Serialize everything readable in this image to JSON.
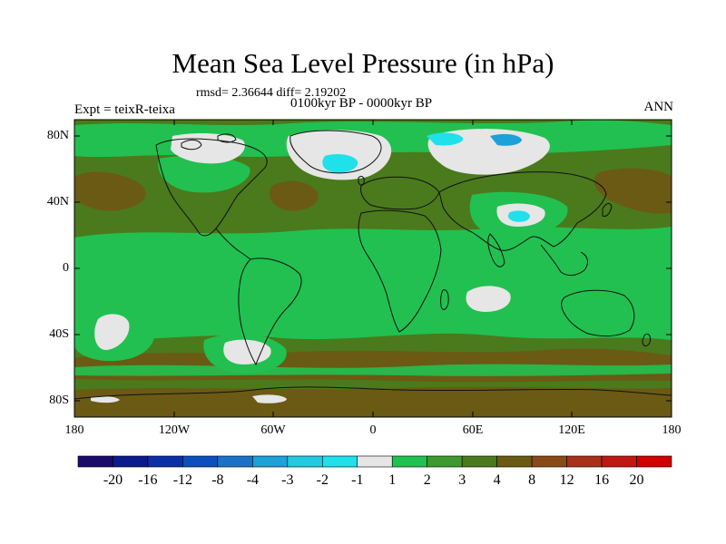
{
  "title": "Mean Sea Level Pressure (in hPa)",
  "stats_line": "rmsd= 2.36644  diff= 2.19202",
  "period_line": "0100kyr BP - 0000kyr BP",
  "experiment_label": "Expt = teixR-teixa",
  "season_label": "ANN",
  "y_axis_labels": [
    "80N",
    "40N",
    "0",
    "40S",
    "80S"
  ],
  "x_axis_labels": [
    "180",
    "120W",
    "60W",
    "0",
    "60E",
    "120E",
    "180"
  ],
  "colorbar": {
    "tick_labels": [
      "-20",
      "-16",
      "-12",
      "-8",
      "-4",
      "-3",
      "-2",
      "-1",
      "1",
      "2",
      "3",
      "4",
      "8",
      "12",
      "16",
      "20"
    ],
    "colors": [
      "#1a0b6b",
      "#0b1a8c",
      "#0c2fa8",
      "#0b4fbd",
      "#1a72c8",
      "#1ea0d8",
      "#24c8e0",
      "#20e0ea",
      "#e6e6e6",
      "#22c050",
      "#3e9a30",
      "#4a7a1c",
      "#6a5a14",
      "#8a4a18",
      "#a83018",
      "#c01810",
      "#d00000"
    ]
  },
  "colors": {
    "band_green": "#22c050",
    "mid_green": "#3e9a30",
    "dark_green": "#4a7a1c",
    "brown": "#6a5a14",
    "white": "#e6e6e6",
    "cyan": "#20e0ea",
    "coast": "#111111"
  }
}
